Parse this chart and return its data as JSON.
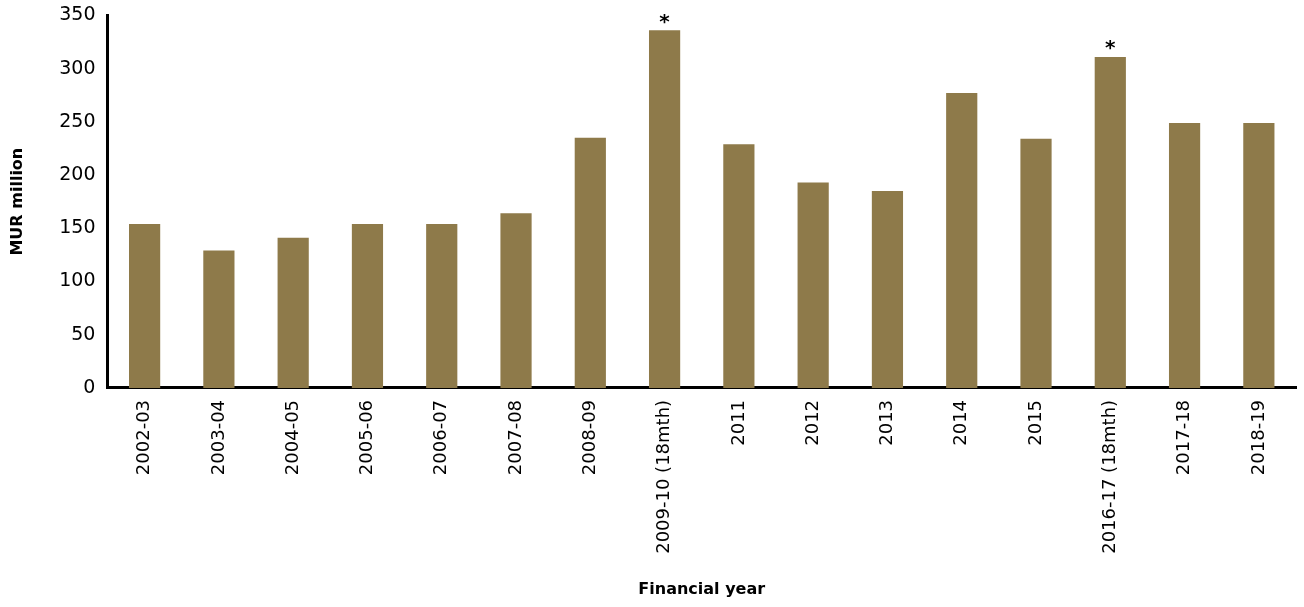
{
  "chart_data": {
    "type": "bar",
    "xlabel": "Financial year",
    "ylabel": "MUR million",
    "categories": [
      "2002-03",
      "2003-04",
      "2004-05",
      "2005-06",
      "2006-07",
      "2007-08",
      "2008-09",
      "2009-10 (18mth)",
      "2011",
      "2012",
      "2013",
      "2014",
      "2015",
      "2016-17 (18mth)",
      "2017-18",
      "2018-19"
    ],
    "values": [
      154,
      129,
      141,
      154,
      154,
      164,
      235,
      336,
      229,
      193,
      185,
      277,
      234,
      311,
      249,
      249
    ],
    "color": "#8e7a4a",
    "ylim": [
      0,
      350
    ],
    "yticks": [
      0,
      50,
      100,
      150,
      200,
      250,
      300,
      350
    ],
    "grid": false,
    "legend": false,
    "annotations": [
      {
        "text": "*",
        "x": "2009-10 (18mth)",
        "y": 336
      },
      {
        "text": "*",
        "x": "2016-17 (18mth)",
        "y": 311
      }
    ]
  }
}
